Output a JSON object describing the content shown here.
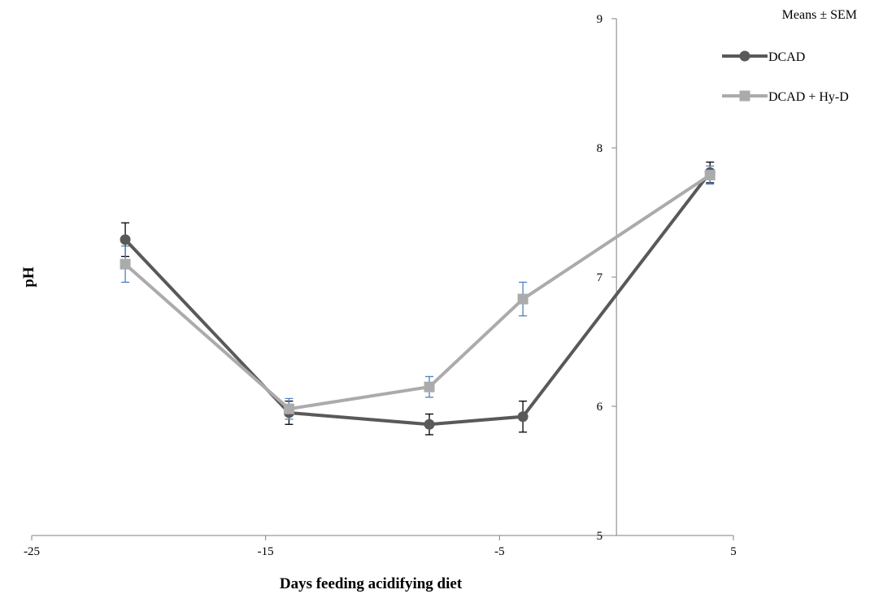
{
  "chart_data": {
    "type": "line",
    "title": "",
    "xlabel": "Days feeding acidifying diet",
    "ylabel": "pH",
    "xlim": [
      -25,
      5
    ],
    "ylim": [
      5,
      9
    ],
    "x_ticks": [
      -25,
      -15,
      -5,
      5
    ],
    "x_tick_labels": [
      "-25",
      "-15",
      "-5",
      "5"
    ],
    "y_ticks": [
      5,
      6,
      7,
      8,
      9
    ],
    "y_tick_labels": [
      "5",
      "6",
      "7",
      "8",
      "9"
    ],
    "y_axis_at_x": 0,
    "grid": false,
    "legend_title": "Means ± SEM",
    "legend_position": "top-right",
    "series": [
      {
        "name": "DCAD",
        "color": "#595959",
        "marker": "circle",
        "x": [
          -21,
          -14,
          -8,
          -4,
          4
        ],
        "y": [
          7.29,
          5.95,
          5.86,
          5.92,
          7.81
        ],
        "err": [
          0.13,
          0.09,
          0.08,
          0.12,
          0.08
        ],
        "err_color": "#000000"
      },
      {
        "name": "DCAD + Hy-D",
        "color": "#ABABAB",
        "marker": "square",
        "x": [
          -21,
          -14,
          -8,
          -4,
          4
        ],
        "y": [
          7.1,
          5.98,
          6.15,
          6.83,
          7.79
        ],
        "err": [
          0.14,
          0.08,
          0.08,
          0.13,
          0.07
        ],
        "err_color": "#4F81BD"
      }
    ]
  }
}
